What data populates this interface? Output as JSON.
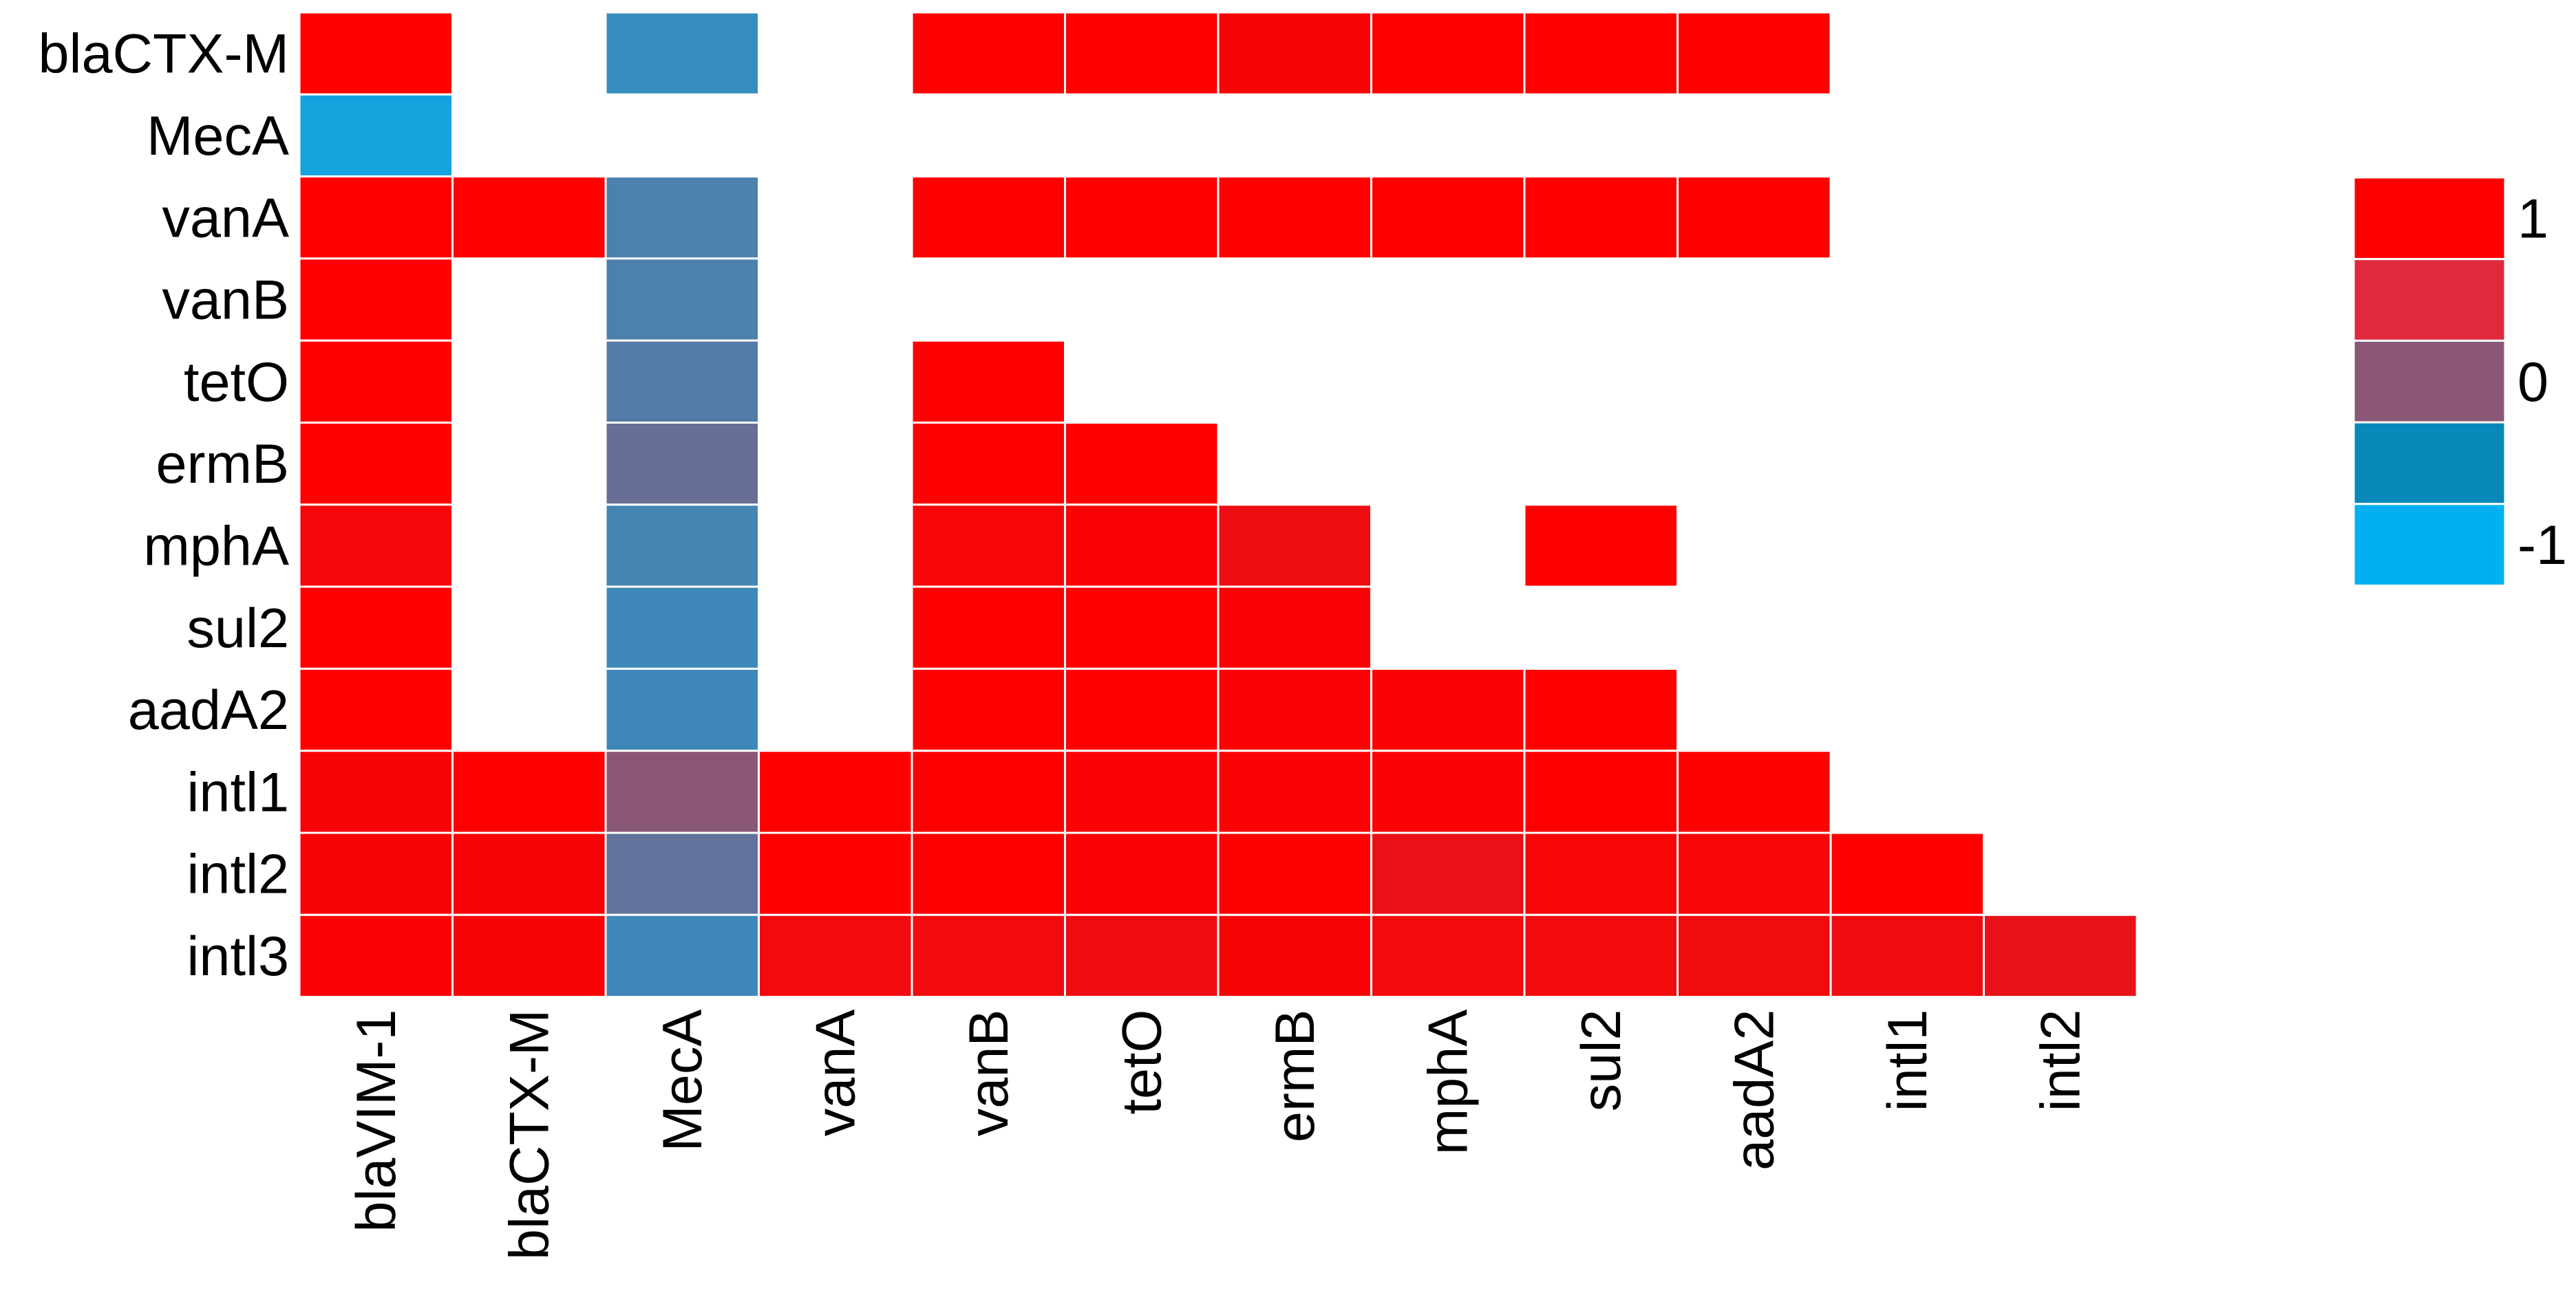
{
  "chart_data": {
    "type": "heatmap",
    "title": "",
    "xlabel": "",
    "ylabel": "",
    "color_range": [
      -1,
      1
    ],
    "rows": [
      "blaCTX-M",
      "MecA",
      "vanA",
      "vanB",
      "tetO",
      "ermB",
      "mphA",
      "sul2",
      "aadA2",
      "intl1",
      "intl2",
      "intl3"
    ],
    "columns": [
      "blaVIM-1",
      "blaCTX-M",
      "MecA",
      "vanA",
      "vanB",
      "tetO",
      "ermB",
      "mphA",
      "sul2",
      "aadA2",
      "intl1",
      "intl2"
    ],
    "values": [
      [
        1.0,
        null,
        -0.6,
        null,
        1.0,
        1.0,
        0.95,
        1.0,
        1.0,
        1.0,
        null,
        null
      ],
      [
        -0.85,
        null,
        null,
        null,
        null,
        null,
        null,
        null,
        null,
        null,
        null,
        null
      ],
      [
        1.0,
        1.0,
        -0.45,
        null,
        1.0,
        1.0,
        1.0,
        1.0,
        1.0,
        1.0,
        null,
        null
      ],
      [
        1.0,
        null,
        -0.45,
        null,
        null,
        null,
        null,
        null,
        null,
        null,
        null,
        null
      ],
      [
        1.0,
        null,
        -0.4,
        null,
        1.0,
        null,
        null,
        null,
        null,
        null,
        null,
        null
      ],
      [
        1.0,
        null,
        -0.25,
        null,
        1.0,
        1.0,
        null,
        null,
        null,
        null,
        null,
        null
      ],
      [
        0.92,
        null,
        -0.5,
        null,
        0.93,
        0.97,
        0.85,
        null,
        1.0,
        null,
        null,
        null
      ],
      [
        1.0,
        null,
        -0.55,
        null,
        1.0,
        1.0,
        0.97,
        null,
        null,
        null,
        null,
        null
      ],
      [
        1.0,
        null,
        -0.55,
        null,
        1.0,
        1.0,
        0.97,
        0.97,
        1.0,
        null,
        null,
        null
      ],
      [
        0.95,
        1.0,
        0.0,
        1.0,
        1.0,
        0.97,
        0.97,
        0.97,
        1.0,
        0.98,
        null,
        null
      ],
      [
        0.95,
        0.95,
        -0.3,
        1.0,
        1.0,
        0.97,
        0.98,
        0.82,
        0.93,
        0.93,
        1.0,
        null
      ],
      [
        0.97,
        0.95,
        -0.55,
        0.88,
        0.88,
        0.86,
        0.95,
        0.88,
        0.88,
        0.87,
        0.86,
        0.8
      ]
    ],
    "legend": {
      "placement": "right",
      "bins": [
        {
          "color": "#ff0000"
        },
        {
          "color": "#df2a3d"
        },
        {
          "color": "#8a5876"
        },
        {
          "color": "#0788b9"
        },
        {
          "color": "#00b0f0"
        }
      ],
      "labels": [
        "1",
        "0",
        "-1"
      ]
    },
    "colors": {
      "negative": "#00b0f0",
      "neutral": "#8a5876",
      "positive": "#ff0000",
      "cell_border": "#ffffff"
    }
  }
}
